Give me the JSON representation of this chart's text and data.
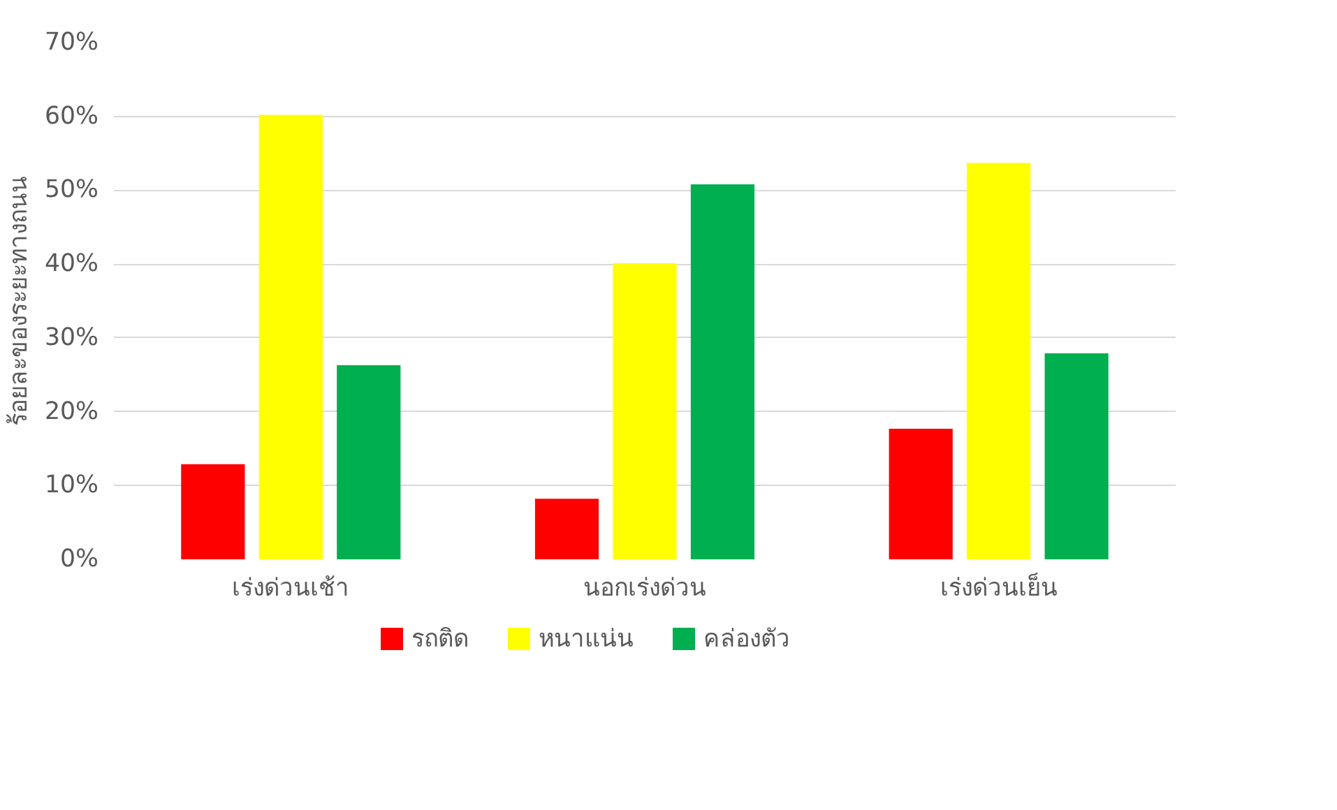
{
  "chart_data": {
    "type": "bar",
    "ylabel": "ร้อยละของระยะทางถนน",
    "categories": [
      "เร่งด่วนเช้า",
      "นอกเร่งด่วน",
      "เร่งด่วนเย็น"
    ],
    "series": [
      {
        "name": "รถติด",
        "color": "#ff0000",
        "values": [
          12.9,
          8.2,
          17.7
        ]
      },
      {
        "name": "หนาแน่น",
        "color": "#ffff00",
        "values": [
          60.2,
          40.1,
          53.7
        ]
      },
      {
        "name": "คล่องตัว",
        "color": "#00b050",
        "values": [
          26.3,
          50.8,
          27.9
        ]
      }
    ],
    "ylim": [
      0,
      70
    ],
    "yticks": [
      {
        "value": 0,
        "label": "0%"
      },
      {
        "value": 10,
        "label": "10%"
      },
      {
        "value": 20,
        "label": "20%"
      },
      {
        "value": 30,
        "label": "30%"
      },
      {
        "value": 40,
        "label": "40%"
      },
      {
        "value": 50,
        "label": "50%"
      },
      {
        "value": 60,
        "label": "60%"
      },
      {
        "value": 70,
        "label": "70%"
      }
    ],
    "grid": "y",
    "legend": "bottom"
  }
}
